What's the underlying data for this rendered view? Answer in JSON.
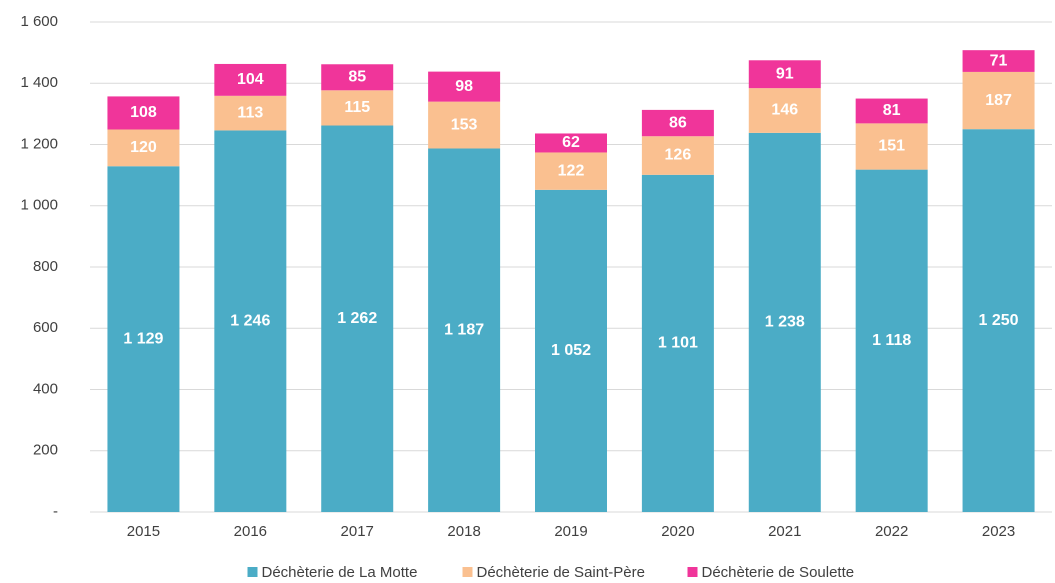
{
  "chart_data": {
    "type": "stacked_bar",
    "categories": [
      "2015",
      "2016",
      "2017",
      "2018",
      "2019",
      "2020",
      "2021",
      "2022",
      "2023"
    ],
    "series": [
      {
        "name": "Déchèterie de La Motte",
        "color": "#4bacc6",
        "values": [
          1129,
          1246,
          1262,
          1187,
          1052,
          1101,
          1238,
          1118,
          1250
        ],
        "value_labels": [
          "1 129",
          "1 246",
          "1 262",
          "1 187",
          "1 052",
          "1 101",
          "1 238",
          "1 118",
          "1 250"
        ]
      },
      {
        "name": "Déchèterie de Saint-Père",
        "color": "#fac090",
        "values": [
          120,
          113,
          115,
          153,
          122,
          126,
          146,
          151,
          187
        ]
      },
      {
        "name": "Déchèterie de Soulette",
        "color": "#f0359a",
        "values": [
          108,
          104,
          85,
          98,
          62,
          86,
          91,
          81,
          71
        ]
      }
    ],
    "ylim": [
      0,
      1600
    ],
    "yticks": [
      {
        "value": 0,
        "label": "-"
      },
      200,
      400,
      600,
      800,
      {
        "value": 1000,
        "label": "1 000"
      },
      {
        "value": 1200,
        "label": "1 200"
      },
      {
        "value": 1400,
        "label": "1 400"
      },
      {
        "value": 1600,
        "label": "1 600"
      }
    ],
    "grid": true,
    "legend": "bottom"
  }
}
